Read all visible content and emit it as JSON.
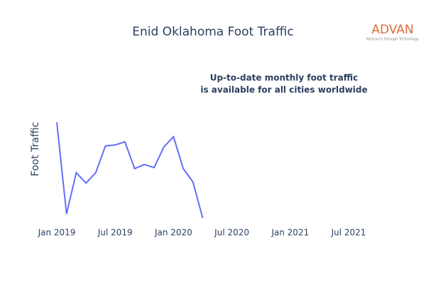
{
  "chart_data": {
    "type": "line",
    "title": "Enid Oklahoma Foot Traffic",
    "y_label": "Foot Traffic",
    "annotation": [
      "Up-to-date monthly foot traffic",
      "is available for all cities worldwide"
    ],
    "logo": {
      "name": "ADVAN",
      "tagline": "Research through Technology"
    },
    "x": [
      "2019-01",
      "2019-02",
      "2019-03",
      "2019-04",
      "2019-05",
      "2019-06",
      "2019-07",
      "2019-08",
      "2019-09",
      "2019-10",
      "2019-11",
      "2019-12",
      "2020-01",
      "2020-02",
      "2020-03",
      "2020-04"
    ],
    "series": [
      {
        "name": "Foot Traffic",
        "color": "#636efa",
        "values": [
          95,
          6,
          46,
          36,
          46,
          72,
          73,
          76,
          50,
          54,
          51,
          71,
          81,
          50,
          37,
          2
        ]
      }
    ],
    "xlim": [
      "2019-01",
      "2021-07"
    ],
    "xticks": [
      {
        "value": "2019-01",
        "label": "Jan 2019"
      },
      {
        "value": "2019-07",
        "label": "Jul 2019"
      },
      {
        "value": "2020-01",
        "label": "Jan 2020"
      },
      {
        "value": "2020-07",
        "label": "Jul 2020"
      },
      {
        "value": "2021-01",
        "label": "Jan 2021"
      },
      {
        "value": "2021-07",
        "label": "Jul 2021"
      }
    ],
    "ylim": [
      0,
      100
    ]
  }
}
